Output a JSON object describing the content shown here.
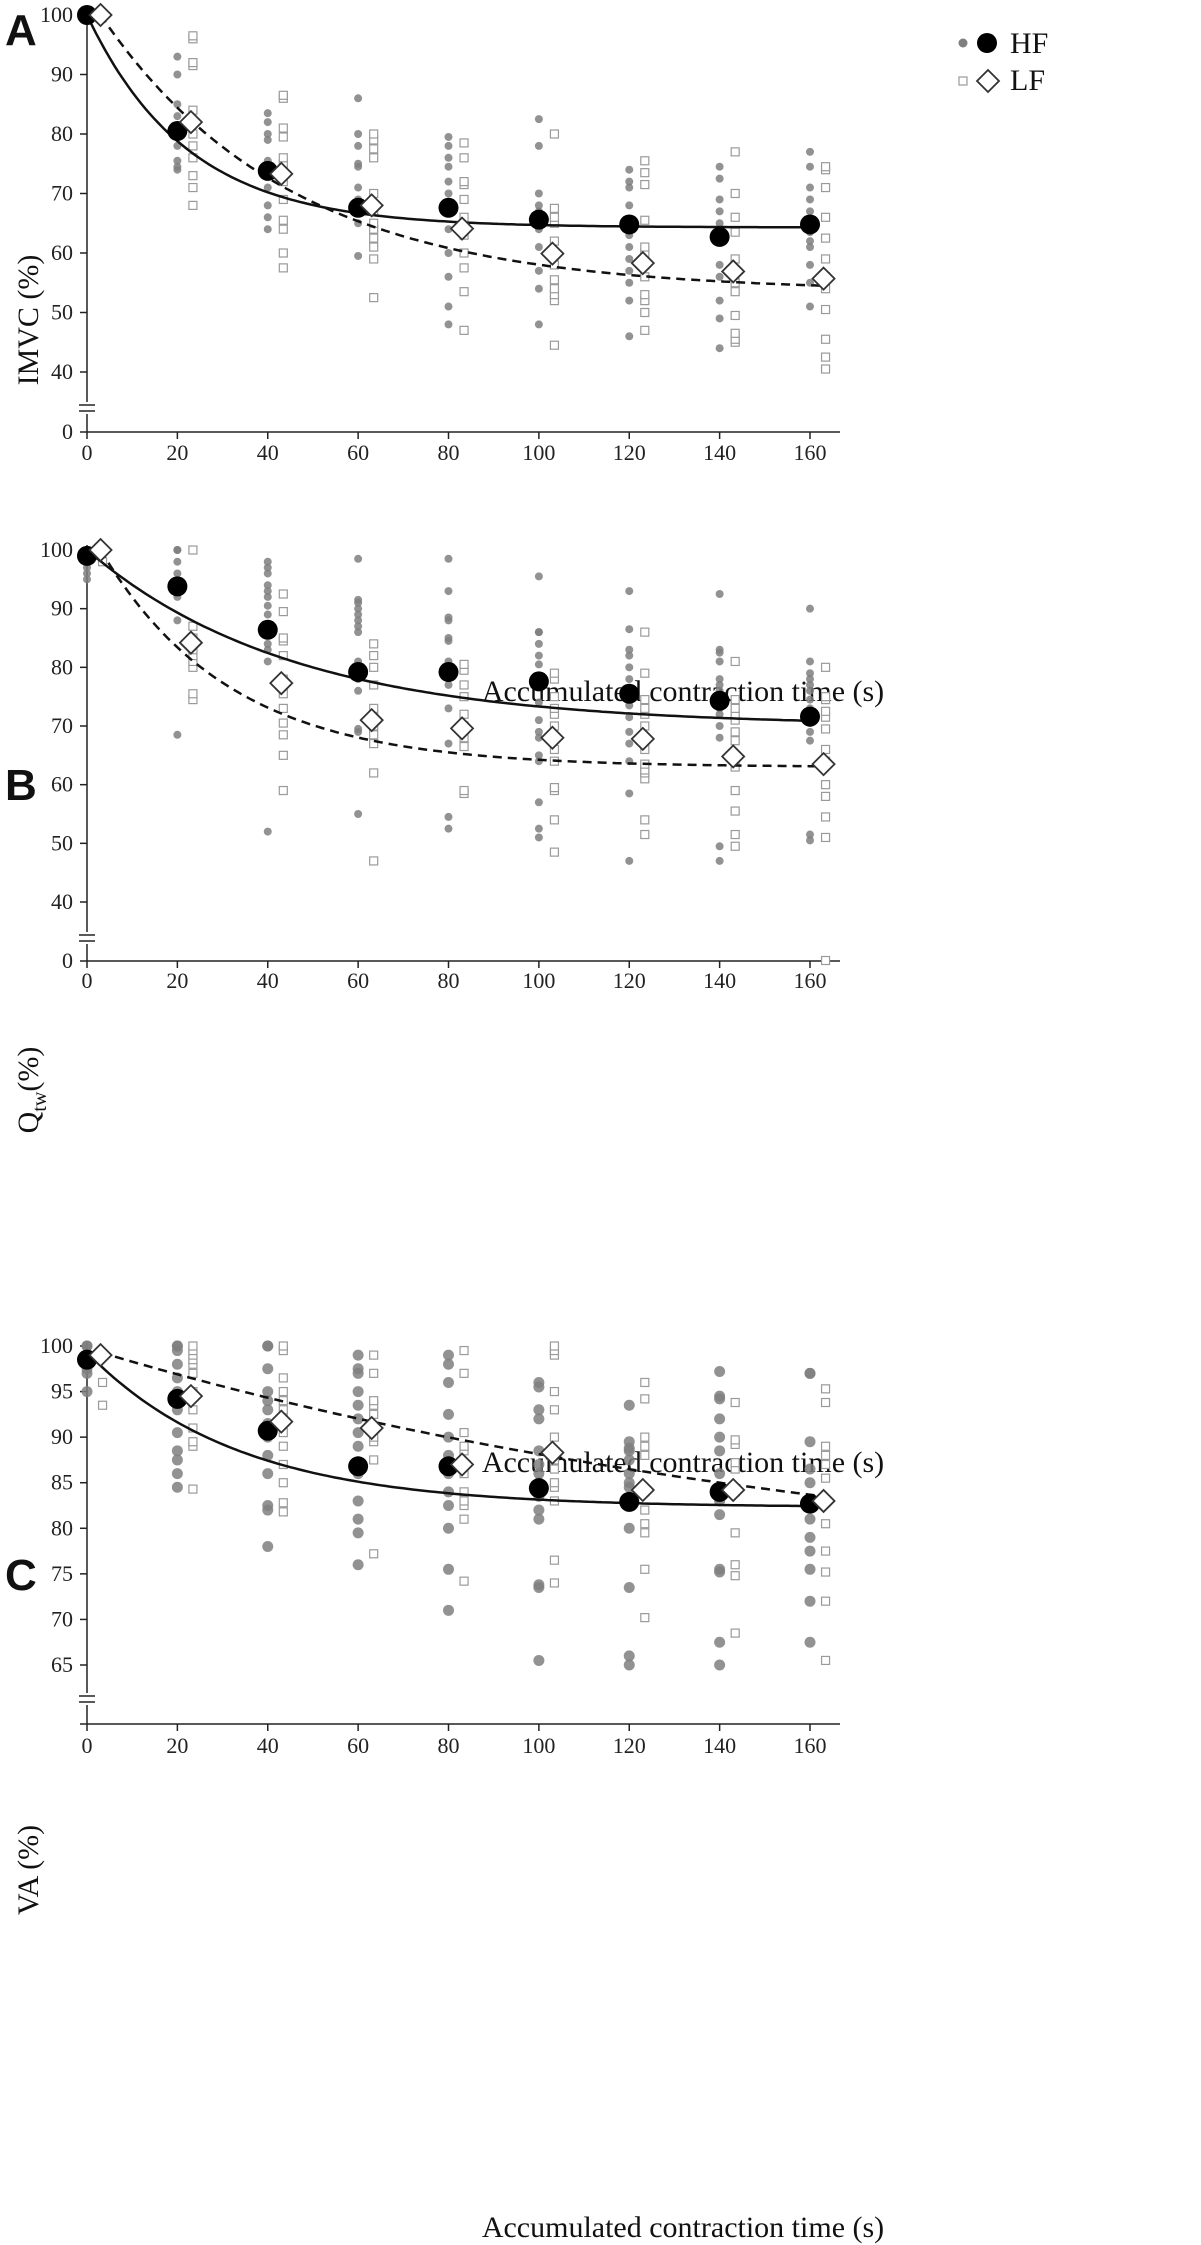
{
  "chart_data": [
    {
      "type": "scatter",
      "panel": "A",
      "xlabel": "Accumulated contraction time (s)",
      "ylabel": "IMVC (%)",
      "xlim": [
        0,
        160
      ],
      "ylim": [
        40,
        100
      ],
      "axis_break": true,
      "xticks": [
        0,
        20,
        40,
        60,
        80,
        100,
        120,
        140,
        160
      ],
      "yticks": [
        0,
        40,
        50,
        60,
        70,
        80,
        90,
        100
      ],
      "legend": [
        {
          "name": "HF",
          "marker": "filled-circle"
        },
        {
          "name": "LF",
          "marker": "open-diamond"
        }
      ],
      "legend_position": "top-right",
      "series": [
        {
          "name": "HF",
          "x": [
            0,
            20,
            40,
            60,
            80,
            100,
            120,
            140,
            160
          ],
          "means": [
            100,
            80.5,
            73.8,
            67.6,
            67.6,
            65.6,
            64.8,
            62.7,
            64.8
          ],
          "fit": {
            "a": 35.7,
            "k": 0.045,
            "c": 64.3,
            "style": "solid"
          },
          "individual": [
            [],
            [
              74,
              74.5,
              75.5,
              78,
              80,
              81,
              83,
              85,
              90,
              93
            ],
            [
              64,
              66,
              68,
              71,
              74,
              75.5,
              79,
              80,
              82,
              83.5
            ],
            [
              59.5,
              65,
              67,
              69,
              71,
              74.5,
              75,
              78,
              80,
              86
            ],
            [
              48,
              51,
              56,
              60,
              64,
              67,
              70,
              72,
              74.5,
              76,
              78,
              79.5
            ],
            [
              48,
              54,
              57,
              61,
              64,
              65.5,
              67,
              68,
              70,
              78,
              82.5
            ],
            [
              46,
              52,
              55,
              57,
              59,
              61,
              63,
              65,
              68,
              71,
              72,
              74
            ],
            [
              44,
              49,
              52,
              56,
              58,
              62,
              63,
              65,
              67,
              69,
              72.5,
              74.5
            ],
            [
              51,
              55,
              58,
              61,
              62,
              63.5,
              65,
              67,
              69,
              71,
              74.5,
              77
            ]
          ]
        },
        {
          "name": "LF",
          "x": [
            3,
            23,
            43,
            63,
            83,
            103,
            123,
            143,
            163
          ],
          "means": [
            100,
            82,
            73.3,
            68,
            64.1,
            59.9,
            58.3,
            56.9,
            55.7
          ],
          "fit": {
            "a": 46.5,
            "k": 0.024,
            "c": 53.5,
            "style": "dashed"
          },
          "individual": [
            [],
            [
              68,
              71,
              73,
              76,
              78,
              80,
              84,
              91.5,
              92,
              96,
              96.5
            ],
            [
              57.5,
              60,
              64,
              65.5,
              69,
              72,
              75,
              76,
              79.5,
              81,
              86,
              86.5
            ],
            [
              52.5,
              59,
              61,
              62.5,
              64,
              65,
              67,
              70,
              76,
              77.5,
              79,
              80
            ],
            [
              47,
              53.5,
              57.5,
              60,
              63,
              66,
              69,
              71.5,
              72,
              76,
              78.5
            ],
            [
              44.5,
              52,
              53,
              54,
              55.5,
              58,
              60,
              62,
              65,
              66,
              67.5,
              80
            ],
            [
              47,
              50,
              52,
              53,
              56,
              58,
              60,
              61,
              65.5,
              71.5,
              73.5,
              75.5
            ],
            [
              45,
              45.5,
              46.5,
              49.5,
              53.5,
              55,
              59,
              63.5,
              66,
              70,
              77
            ],
            [
              40.5,
              42.5,
              45.5,
              50.5,
              54,
              56,
              59,
              62.5,
              66,
              71,
              74,
              74.5
            ]
          ]
        }
      ]
    },
    {
      "type": "scatter",
      "panel": "B",
      "xlabel": "Accumulated contraction time (s)",
      "ylabel": "Q",
      "ylabel_sub": "tw",
      "ylabel_suffix": "(%)",
      "xlim": [
        0,
        160
      ],
      "ylim": [
        40,
        100
      ],
      "axis_break": true,
      "xticks": [
        0,
        20,
        40,
        60,
        80,
        100,
        120,
        140,
        160
      ],
      "yticks": [
        0,
        40,
        50,
        60,
        70,
        80,
        90,
        100
      ],
      "series": [
        {
          "name": "HF",
          "x": [
            0,
            20,
            40,
            60,
            80,
            100,
            120,
            140,
            160
          ],
          "means": [
            99,
            93.8,
            86.4,
            79.2,
            79.2,
            77.6,
            75.5,
            74.3,
            71.6
          ],
          "fit": {
            "a": 30,
            "k": 0.022,
            "c": 70,
            "style": "solid"
          },
          "individual": [
            [
              95,
              96,
              97,
              98,
              100
            ],
            [
              68.5,
              88,
              92,
              96,
              98,
              100,
              100
            ],
            [
              52,
              81,
              83,
              84,
              86,
              87,
              89,
              90.5,
              92,
              93,
              94,
              96,
              97,
              98
            ],
            [
              55,
              69,
              69.5,
              76,
              78,
              80,
              81,
              86,
              87,
              88,
              89,
              90,
              91,
              91.5,
              98.5
            ],
            [
              52.5,
              54.5,
              67,
              73,
              77,
              79,
              81,
              84.5,
              85,
              88,
              88.5,
              93,
              98.5
            ],
            [
              51,
              52.5,
              57,
              64,
              65,
              68,
              69,
              71,
              74,
              77.5,
              78,
              80.5,
              82,
              84,
              86,
              86,
              95.5
            ],
            [
              47,
              58.5,
              64,
              67,
              69,
              71.5,
              73.5,
              75,
              76,
              78,
              80,
              82,
              83,
              86.5,
              93
            ],
            [
              47,
              49.5,
              68,
              70,
              72,
              73,
              74.5,
              76,
              77,
              78,
              81,
              82.5,
              83,
              92.5
            ],
            [
              50.5,
              51.5,
              67.5,
              69,
              70.5,
              71.5,
              73,
              74.5,
              76,
              77,
              78,
              79,
              81,
              90
            ]
          ]
        },
        {
          "name": "LF",
          "x": [
            3,
            23,
            43,
            63,
            83,
            103,
            123,
            143,
            163
          ],
          "means": [
            100,
            84.2,
            77.3,
            71,
            69.6,
            68,
            67.8,
            64.8,
            63.5
          ],
          "fit": {
            "a": 37,
            "k": 0.035,
            "c": 63,
            "style": "dashed"
          },
          "individual": [
            [
              98,
              100
            ],
            [
              74.5,
              75.5,
              80,
              81,
              82,
              83,
              85,
              87,
              100
            ],
            [
              59,
              65,
              68.5,
              70.5,
              73,
              75.5,
              78,
              82,
              84.5,
              85,
              89.5,
              92.5
            ],
            [
              47,
              62,
              67,
              68.5,
              70,
              72,
              73,
              77,
              80,
              82,
              84
            ],
            [
              58.5,
              59,
              66.5,
              68,
              70,
              72,
              75,
              77,
              79.5,
              80.5
            ],
            [
              48.5,
              54,
              59,
              59.5,
              64,
              66,
              68,
              70,
              72,
              73,
              75,
              78,
              79
            ],
            [
              51.5,
              54,
              61,
              62,
              62.5,
              63.5,
              66,
              68,
              70,
              72,
              73,
              74.5,
              79,
              86
            ],
            [
              49.5,
              51.5,
              55.5,
              59,
              63,
              67.5,
              69,
              71,
              72,
              73,
              74.5,
              81
            ],
            [
              1.5,
              51,
              54.5,
              58,
              60,
              64,
              66,
              69.5,
              71.5,
              72.5,
              74.5,
              75,
              80
            ]
          ]
        }
      ]
    },
    {
      "type": "scatter",
      "panel": "C",
      "xlabel": "Accumulated contraction time (s)",
      "ylabel": "VA (%)",
      "xlim": [
        0,
        160
      ],
      "ylim": [
        65,
        100
      ],
      "axis_break": true,
      "xticks": [
        0,
        20,
        40,
        60,
        80,
        100,
        120,
        140,
        160
      ],
      "yticks": [
        65,
        70,
        75,
        80,
        85,
        90,
        95,
        100
      ],
      "series": [
        {
          "name": "HF",
          "x": [
            0,
            20,
            40,
            60,
            80,
            100,
            120,
            140,
            160
          ],
          "means": [
            98.5,
            94.2,
            90.7,
            86.8,
            86.8,
            84.4,
            82.9,
            84,
            82.7
          ],
          "fit": {
            "a": 17,
            "k": 0.03,
            "c": 82.3,
            "style": "solid"
          },
          "individual": [
            [
              95,
              97,
              97.5,
              98,
              99,
              100,
              100
            ],
            [
              84.5,
              86,
              87.5,
              88.5,
              90.5,
              93,
              95,
              96.5,
              98,
              99.5,
              100,
              100
            ],
            [
              78,
              82,
              82.5,
              86,
              88,
              90,
              91.5,
              93,
              94,
              95,
              97.5,
              100,
              100
            ],
            [
              76,
              79.5,
              81,
              83,
              86,
              87,
              89,
              90.5,
              92,
              93.5,
              95,
              97,
              97.5,
              99
            ],
            [
              71,
              75.5,
              80,
              82.5,
              84,
              86,
              88,
              90,
              92.5,
              96,
              98,
              99
            ],
            [
              65.5,
              73.5,
              73.8,
              81,
              82,
              83.5,
              85,
              86,
              87,
              88.5,
              92,
              93,
              95.5,
              96
            ],
            [
              65,
              66,
              73.5,
              80,
              83,
              84.5,
              85,
              86,
              87.5,
              88.5,
              88.8,
              89.5,
              93.5
            ],
            [
              65,
              67.5,
              75.5,
              75.2,
              81.5,
              83,
              86,
              88.5,
              90,
              92,
              94.5,
              94.2,
              97.2
            ],
            [
              67.5,
              72,
              75.5,
              77.5,
              79,
              81,
              83,
              85,
              86.5,
              89.5,
              97,
              97
            ]
          ]
        },
        {
          "name": "LF",
          "x": [
            3,
            23,
            43,
            63,
            83,
            103,
            123,
            143,
            163
          ],
          "means": [
            99,
            94.5,
            91.7,
            91,
            87,
            88.3,
            84.2,
            84.2,
            83
          ],
          "fit": {
            "a": 27,
            "k": 0.0055,
            "c": 72.3,
            "style": "dashed"
          },
          "individual": [
            [
              93.5,
              96
            ],
            [
              84.3,
              89,
              89.5,
              91,
              93,
              95,
              97,
              98,
              98.5,
              99,
              99.5,
              100
            ],
            [
              81.8,
              82.8,
              85,
              87,
              89,
              90.5,
              92,
              93,
              94,
              95,
              96.5,
              99.5,
              100
            ],
            [
              77.2,
              87.5,
              89.5,
              90,
              91,
              92.5,
              93.5,
              94,
              97,
              99
            ],
            [
              74.2,
              81,
              82.5,
              83,
              84,
              86,
              88.5,
              89,
              90.5,
              97,
              99.5
            ],
            [
              74,
              76.5,
              83,
              84.5,
              85,
              86.5,
              87.5,
              90,
              93,
              95,
              99,
              99.5,
              100
            ],
            [
              70.2,
              75.5,
              79.5,
              80.5,
              82,
              84,
              88,
              89,
              90,
              94.2,
              96
            ],
            [
              68.5,
              74.8,
              76,
              79.5,
              84,
              86.5,
              87.2,
              89.2,
              89.7,
              93.8
            ],
            [
              65.5,
              72,
              75.2,
              77.5,
              80.5,
              83,
              85.5,
              87,
              88,
              89,
              93.8,
              95.3
            ]
          ]
        }
      ]
    }
  ],
  "colors": {
    "individual_hf": "#7f7f7f",
    "individual_lf_stroke": "#9a9a9a",
    "mean_hf": "#000000",
    "mean_lf_stroke": "#333333",
    "axis": "#222222"
  }
}
